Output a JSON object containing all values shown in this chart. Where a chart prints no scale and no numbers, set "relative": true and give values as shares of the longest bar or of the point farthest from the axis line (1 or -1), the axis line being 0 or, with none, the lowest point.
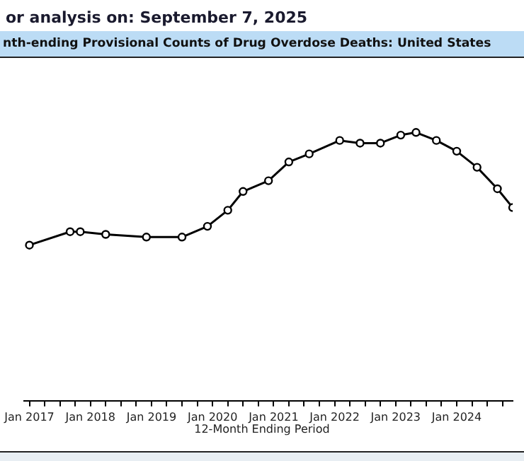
{
  "chart_data": {
    "type": "line",
    "subtitle": "or analysis on: September 7, 2025",
    "title": "nth-ending Provisional Counts of Drug Overdose Deaths: United States",
    "xlabel": "12-Month Ending Period",
    "relative": true,
    "marker": "circle",
    "line_style": "solid",
    "grid": false,
    "legend": false,
    "tick_labels": "x",
    "x": [
      "2017-01",
      "2017-09",
      "2017-11",
      "2018-04",
      "2018-12",
      "2019-07",
      "2019-12",
      "2020-04",
      "2020-07",
      "2020-12",
      "2021-04",
      "2021-08",
      "2022-02",
      "2022-06",
      "2022-10",
      "2023-02",
      "2023-05",
      "2023-09",
      "2024-01",
      "2024-05",
      "2024-09",
      "2024-12"
    ],
    "series": [
      {
        "color": "#000000",
        "values": [
          0.58,
          0.63,
          0.63,
          0.62,
          0.61,
          0.61,
          0.65,
          0.71,
          0.78,
          0.82,
          0.89,
          0.92,
          0.97,
          0.96,
          0.96,
          0.99,
          1,
          0.97,
          0.93,
          0.87,
          0.79,
          0.72
        ]
      }
    ],
    "xlim": [
      "2016-12",
      "2024-12"
    ],
    "xticks": [
      {
        "value": "2017-01",
        "label": "Jan 2017"
      },
      {
        "value": "2017-04",
        "label": null
      },
      {
        "value": "2017-07",
        "label": null
      },
      {
        "value": "2017-10",
        "label": null
      },
      {
        "value": "2018-01",
        "label": "Jan 2018"
      },
      {
        "value": "2018-04",
        "label": null
      },
      {
        "value": "2018-07",
        "label": null
      },
      {
        "value": "2018-10",
        "label": null
      },
      {
        "value": "2019-01",
        "label": "Jan 2019"
      },
      {
        "value": "2019-04",
        "label": null
      },
      {
        "value": "2019-07",
        "label": null
      },
      {
        "value": "2019-10",
        "label": null
      },
      {
        "value": "2020-01",
        "label": "Jan 2020"
      },
      {
        "value": "2020-04",
        "label": null
      },
      {
        "value": "2020-07",
        "label": null
      },
      {
        "value": "2020-10",
        "label": null
      },
      {
        "value": "2021-01",
        "label": "Jan 2021"
      },
      {
        "value": "2021-04",
        "label": null
      },
      {
        "value": "2021-07",
        "label": null
      },
      {
        "value": "2021-10",
        "label": null
      },
      {
        "value": "2022-01",
        "label": "Jan 2022"
      },
      {
        "value": "2022-04",
        "label": null
      },
      {
        "value": "2022-07",
        "label": null
      },
      {
        "value": "2022-10",
        "label": null
      },
      {
        "value": "2023-01",
        "label": "Jan 2023"
      },
      {
        "value": "2023-04",
        "label": null
      },
      {
        "value": "2023-07",
        "label": null
      },
      {
        "value": "2023-10",
        "label": null
      },
      {
        "value": "2024-01",
        "label": "Jan 2024"
      },
      {
        "value": "2024-04",
        "label": null
      },
      {
        "value": "2024-07",
        "label": null
      },
      {
        "value": "2024-10",
        "label": null
      }
    ]
  }
}
